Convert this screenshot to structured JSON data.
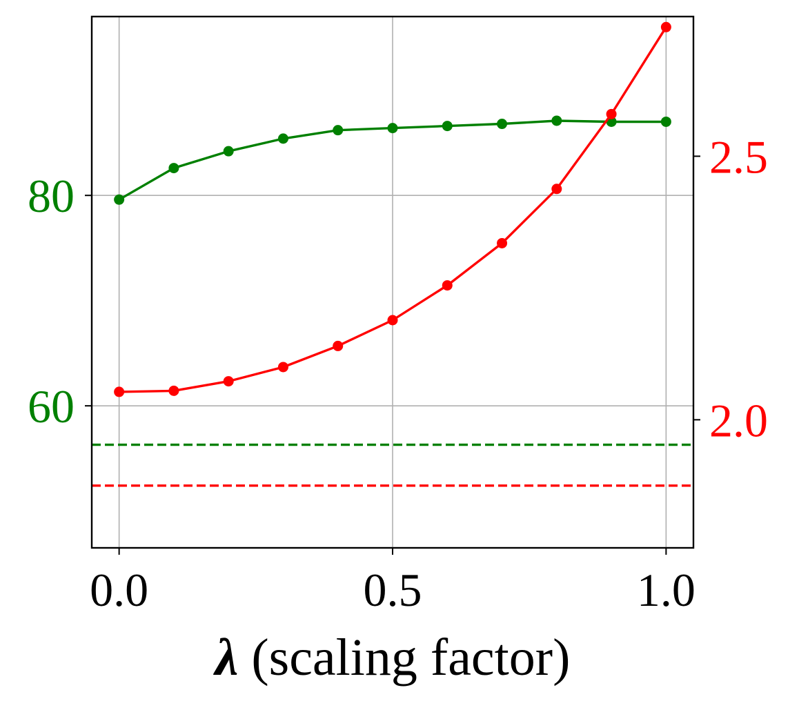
{
  "chart_data": {
    "type": "line",
    "title": "",
    "xlabel_symbol": "λ",
    "xlabel_text": " (scaling factor)",
    "xlim": [
      -0.05,
      1.05
    ],
    "xticks": [
      0.0,
      0.5,
      1.0
    ],
    "xtick_labels": [
      "0.0",
      "0.5",
      "1.0"
    ],
    "grid": true,
    "legend": "none",
    "x": [
      0.0,
      0.1,
      0.2,
      0.3,
      0.4,
      0.5,
      0.6,
      0.7,
      0.8,
      0.9,
      1.0
    ],
    "left_axis": {
      "ylim": [
        46.5,
        97.0
      ],
      "ticks": [
        60,
        80
      ],
      "tick_labels": [
        "60",
        "80"
      ],
      "color": "#008000"
    },
    "right_axis": {
      "ylim": [
        1.757,
        2.765
      ],
      "ticks": [
        2.0,
        2.5
      ],
      "tick_labels": [
        "2.0",
        "2.5"
      ],
      "color": "#ff0000"
    },
    "series": [
      {
        "axis": "left",
        "color": "#008000",
        "values": [
          79.6,
          82.6,
          84.2,
          85.4,
          86.2,
          86.4,
          86.6,
          86.8,
          87.1,
          87.0,
          87.0
        ]
      },
      {
        "axis": "right",
        "color": "#ff0000",
        "values": [
          2.053,
          2.055,
          2.073,
          2.1,
          2.14,
          2.189,
          2.255,
          2.335,
          2.438,
          2.58,
          2.745
        ]
      }
    ],
    "reference_lines": [
      {
        "axis": "left",
        "value": 56.3,
        "color": "#008000",
        "style": "dashed"
      },
      {
        "axis": "right",
        "value": 1.875,
        "color": "#ff0000",
        "style": "dashed"
      }
    ]
  }
}
